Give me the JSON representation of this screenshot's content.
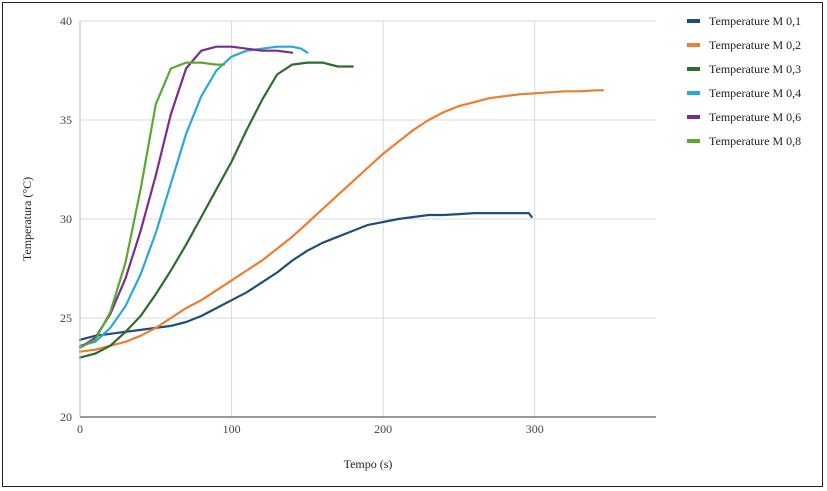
{
  "chart_data": {
    "type": "line",
    "title": "",
    "xlabel": "Tempo (s)",
    "ylabel": "Temperatura (°C)",
    "xlim": [
      0,
      380
    ],
    "ylim": [
      20,
      40
    ],
    "xticks": [
      0,
      100,
      200,
      300
    ],
    "yticks": [
      20,
      25,
      30,
      35,
      40
    ],
    "grid": true,
    "legend_position": "right",
    "series": [
      {
        "name": "Temperature M 0,1",
        "color": "#1f4e79",
        "x": [
          0,
          10,
          20,
          40,
          60,
          70,
          80,
          90,
          100,
          110,
          120,
          130,
          140,
          150,
          160,
          170,
          180,
          190,
          200,
          210,
          220,
          230,
          240,
          250,
          260,
          270,
          280,
          290,
          296,
          298
        ],
        "y": [
          23.9,
          24.1,
          24.2,
          24.4,
          24.6,
          24.8,
          25.1,
          25.5,
          25.9,
          26.3,
          26.8,
          27.3,
          27.9,
          28.4,
          28.8,
          29.1,
          29.4,
          29.7,
          29.85,
          30.0,
          30.1,
          30.2,
          30.2,
          30.25,
          30.3,
          30.3,
          30.3,
          30.3,
          30.3,
          30.1
        ]
      },
      {
        "name": "Temperature M 0,2",
        "color": "#ed7d31",
        "x": [
          0,
          10,
          20,
          30,
          40,
          50,
          60,
          70,
          80,
          90,
          100,
          110,
          120,
          130,
          140,
          150,
          160,
          170,
          180,
          190,
          200,
          210,
          220,
          230,
          240,
          250,
          260,
          270,
          280,
          290,
          300,
          310,
          320,
          330,
          340,
          345
        ],
        "y": [
          23.3,
          23.4,
          23.6,
          23.8,
          24.1,
          24.5,
          25.0,
          25.5,
          25.9,
          26.4,
          26.9,
          27.4,
          27.9,
          28.5,
          29.1,
          29.8,
          30.5,
          31.2,
          31.9,
          32.6,
          33.3,
          33.9,
          34.5,
          35.0,
          35.4,
          35.7,
          35.9,
          36.1,
          36.2,
          36.3,
          36.35,
          36.4,
          36.45,
          36.45,
          36.5,
          36.5
        ]
      },
      {
        "name": "Temperature M 0,3",
        "color": "#2e6b2e",
        "x": [
          0,
          10,
          20,
          30,
          40,
          50,
          60,
          70,
          80,
          90,
          100,
          110,
          120,
          130,
          140,
          150,
          160,
          170,
          180
        ],
        "y": [
          23.0,
          23.2,
          23.6,
          24.3,
          25.1,
          26.2,
          27.4,
          28.7,
          30.1,
          31.5,
          32.9,
          34.5,
          36.0,
          37.3,
          37.8,
          37.9,
          37.9,
          37.7,
          37.7
        ]
      },
      {
        "name": "Temperature M 0,4",
        "color": "#2aa8d8",
        "x": [
          0,
          10,
          20,
          30,
          40,
          50,
          60,
          70,
          80,
          90,
          100,
          110,
          120,
          130,
          140,
          146,
          150
        ],
        "y": [
          23.6,
          23.8,
          24.5,
          25.6,
          27.2,
          29.3,
          31.8,
          34.3,
          36.2,
          37.5,
          38.2,
          38.5,
          38.6,
          38.7,
          38.7,
          38.6,
          38.4
        ]
      },
      {
        "name": "Temperature M 0,6",
        "color": "#7b2c8f",
        "x": [
          0,
          10,
          20,
          30,
          40,
          50,
          60,
          70,
          80,
          90,
          100,
          110,
          120,
          130,
          140
        ],
        "y": [
          23.5,
          24.0,
          25.2,
          27.0,
          29.4,
          32.2,
          35.3,
          37.6,
          38.5,
          38.7,
          38.7,
          38.6,
          38.5,
          38.5,
          38.4
        ]
      },
      {
        "name": "Temperature M 0,8",
        "color": "#5aa832",
        "x": [
          0,
          10,
          20,
          30,
          40,
          50,
          60,
          70,
          80,
          90,
          95
        ],
        "y": [
          23.5,
          23.9,
          25.3,
          27.8,
          31.5,
          35.8,
          37.6,
          37.9,
          37.9,
          37.8,
          37.8
        ]
      }
    ]
  }
}
